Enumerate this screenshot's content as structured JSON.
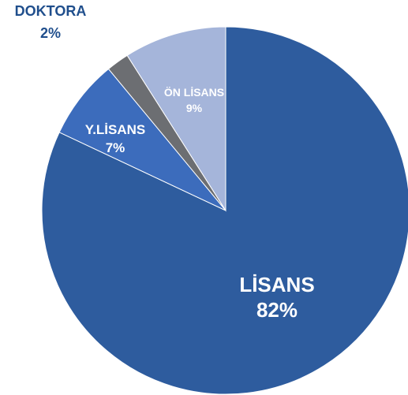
{
  "chart_data": {
    "type": "pie",
    "title": "",
    "slices": [
      {
        "label": "LİSANS",
        "value": 82,
        "value_text": "82%",
        "color": "#2E5C9E",
        "label_color": "#ffffff"
      },
      {
        "label": "Y.LİSANS",
        "value": 7,
        "value_text": "7%",
        "color": "#3C6CBC",
        "label_color": "#ffffff"
      },
      {
        "label": "DOKTORA",
        "value": 2,
        "value_text": "2%",
        "color": "#6C6E72",
        "label_color": "#1F4E8C"
      },
      {
        "label": "ÖN LİSANS",
        "value": 9,
        "value_text": "9%",
        "color": "#A5B5DA",
        "label_color": "#ffffff"
      }
    ]
  }
}
